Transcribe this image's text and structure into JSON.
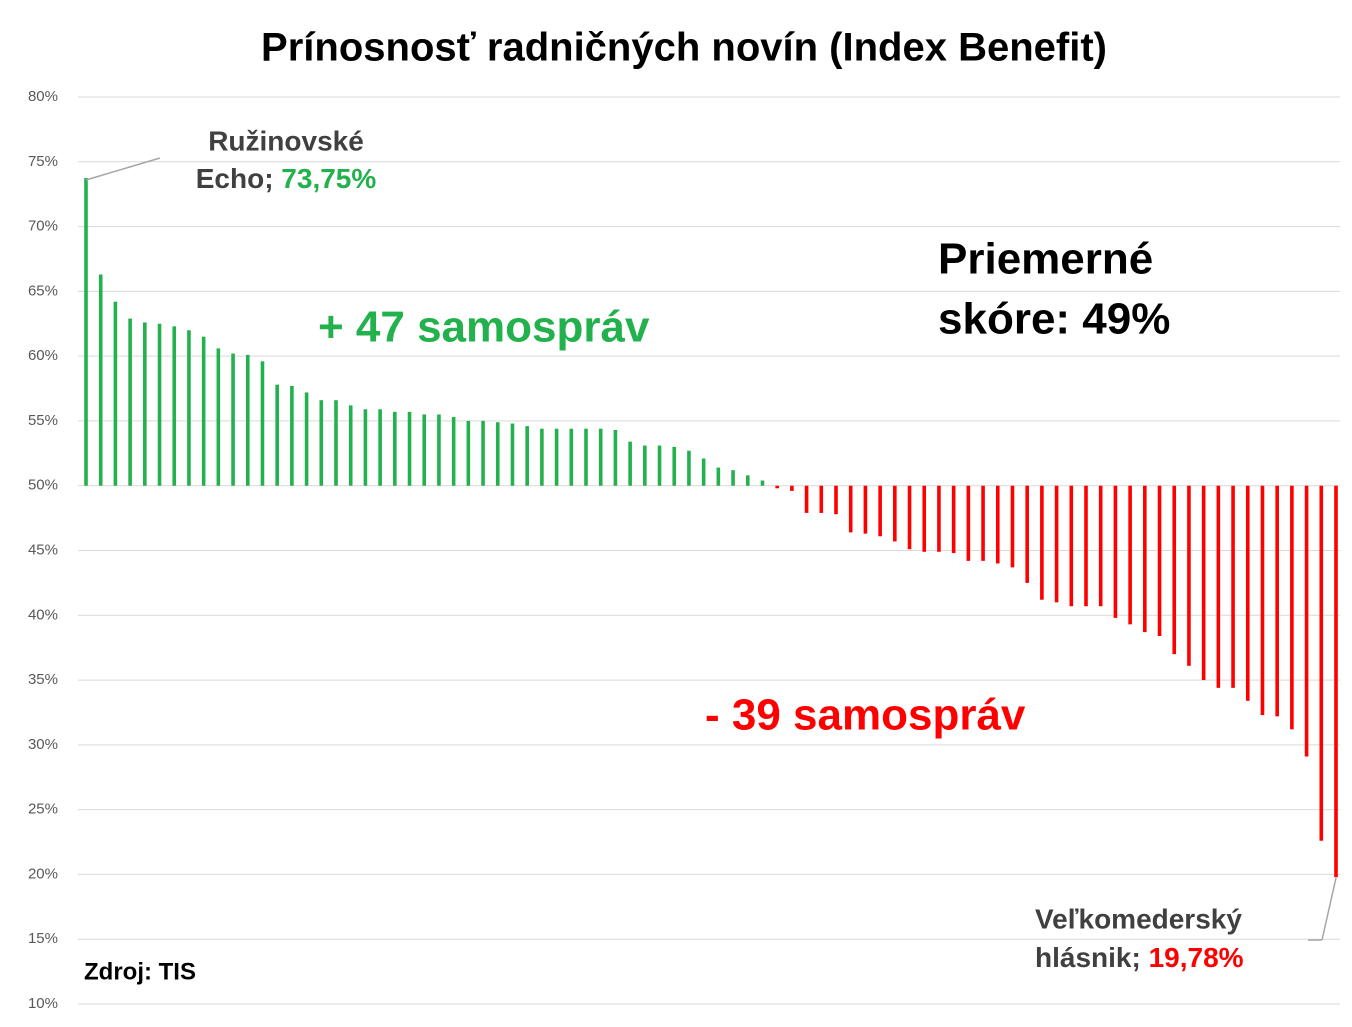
{
  "chart_data": {
    "type": "bar",
    "title": "Prínosnosť radničných novín (Index Benefit)",
    "values": [
      73.75,
      66.3,
      64.2,
      62.9,
      62.6,
      62.5,
      62.3,
      62.0,
      61.5,
      60.6,
      60.2,
      60.1,
      59.6,
      57.8,
      57.7,
      57.2,
      56.6,
      56.6,
      56.2,
      55.9,
      55.9,
      55.7,
      55.7,
      55.5,
      55.5,
      55.3,
      55.0,
      55.0,
      54.9,
      54.8,
      54.6,
      54.4,
      54.4,
      54.4,
      54.4,
      54.4,
      54.3,
      53.4,
      53.1,
      53.1,
      53.0,
      52.7,
      52.1,
      51.4,
      51.2,
      50.8,
      50.4,
      49.8,
      49.6,
      47.9,
      47.9,
      47.8,
      46.4,
      46.3,
      46.1,
      45.7,
      45.1,
      44.9,
      44.9,
      44.8,
      44.2,
      44.2,
      44.0,
      43.7,
      42.5,
      41.2,
      41.0,
      40.7,
      40.7,
      40.7,
      39.8,
      39.3,
      38.7,
      38.4,
      37.0,
      36.1,
      35.0,
      34.4,
      34.4,
      33.4,
      32.3,
      32.2,
      31.2,
      29.1,
      22.6,
      19.78
    ],
    "baseline": 50,
    "color_above": "#22b14c",
    "color_below": "#ff0000",
    "ylim": [
      10,
      80
    ],
    "yticks": [
      {
        "value": 10,
        "label": "10%"
      },
      {
        "value": 15,
        "label": "15%"
      },
      {
        "value": 20,
        "label": "20%"
      },
      {
        "value": 25,
        "label": "25%"
      },
      {
        "value": 30,
        "label": "30%"
      },
      {
        "value": 35,
        "label": "35%"
      },
      {
        "value": 40,
        "label": "40%"
      },
      {
        "value": 45,
        "label": "45%"
      },
      {
        "value": 50,
        "label": "50%"
      },
      {
        "value": 55,
        "label": "55%"
      },
      {
        "value": 60,
        "label": "60%"
      },
      {
        "value": 65,
        "label": "65%"
      },
      {
        "value": 70,
        "label": "70%"
      },
      {
        "value": 75,
        "label": "75%"
      },
      {
        "value": 80,
        "label": "80%"
      }
    ],
    "grid": true,
    "annotations": [
      {
        "lines": [
          "Ružinovské",
          "Echo;"
        ],
        "value_label": "73,75%"
      },
      {
        "lines": [
          "Veľkomederský",
          "hlásnik;"
        ],
        "value_label": "19,78%"
      }
    ],
    "above_label": "+ 47 samospráv",
    "below_label": "- 39 samospráv",
    "average_label": [
      "Priemerné",
      "skóre: 49%"
    ],
    "source": "Zdroj: TIS"
  }
}
